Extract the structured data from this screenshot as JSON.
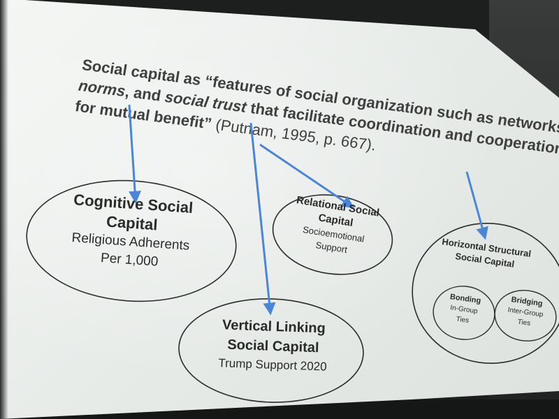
{
  "slide": {
    "quote": {
      "line1": "Social capital as “features of social organization such as networks,",
      "line2_italic_a": "norms",
      "line2_mid": ", and ",
      "line2_italic_b": "social trust",
      "line2_end": " that facilitate coordination and cooperation",
      "line3": "for mutual benefit”",
      "citation": " (Putnam, 1995, p. 667)."
    },
    "nodes": {
      "cognitive": {
        "title_1": "Cognitive Social",
        "title_2": "Capital",
        "sub_1": "Religious Adherents",
        "sub_2": "Per 1,000"
      },
      "relational": {
        "title_1": "Relational Social",
        "title_2": "Capital",
        "sub_1": "Socioemotional",
        "sub_2": "Support"
      },
      "vertical": {
        "title_1": "Vertical Linking",
        "title_2": "Social Capital",
        "sub_1": "Trump Support 2020"
      },
      "horizontal": {
        "title_1": "Horizontal Structural",
        "title_2": "Social Capital",
        "bonding": {
          "title": "Bonding",
          "sub_1": "In-Group",
          "sub_2": "Ties"
        },
        "bridging": {
          "title": "Bridging",
          "sub_1": "Inter-Group",
          "sub_2": "Ties"
        }
      }
    },
    "colors": {
      "arrow": "#4a86d8",
      "ellipse_stroke": "#2b2b2b",
      "text": "#2a2a2a"
    }
  }
}
